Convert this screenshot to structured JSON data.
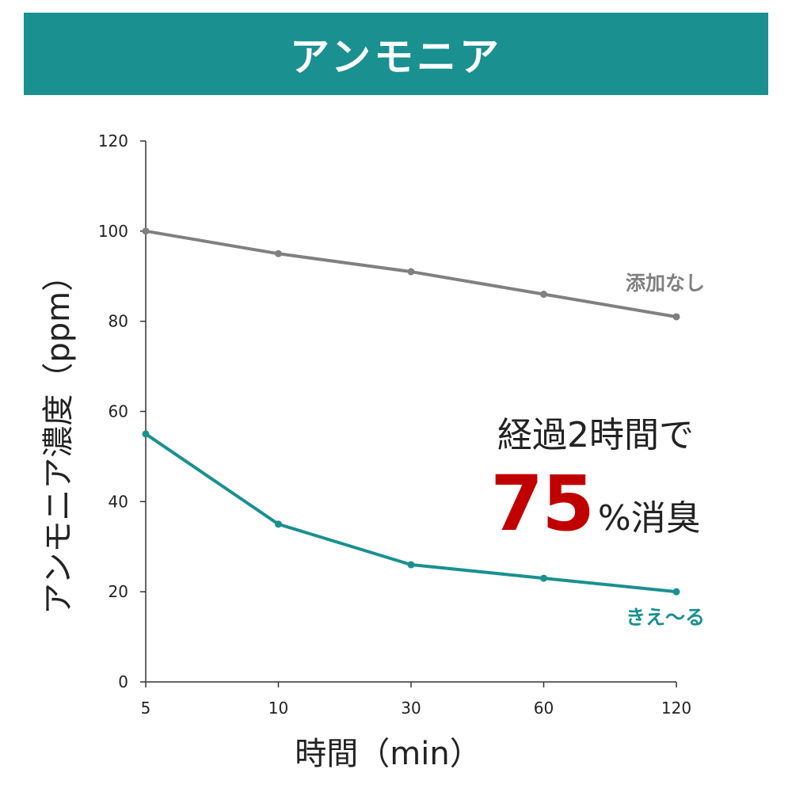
{
  "banner": {
    "title": "アンモニア"
  },
  "callout": {
    "line1": "経過2時間で",
    "value": "75",
    "suffix": "%消臭"
  },
  "chart_data": {
    "type": "line",
    "title": "アンモニア",
    "xlabel": "時間（min）",
    "ylabel": "アンモニア濃度（ppm）",
    "categories": [
      "5",
      "10",
      "30",
      "60",
      "120"
    ],
    "ylim": [
      0,
      120
    ],
    "yticks": [
      "0",
      "20",
      "40",
      "60",
      "80",
      "100",
      "120"
    ],
    "grid": false,
    "series": [
      {
        "name": "添加なし",
        "color": "#808080",
        "values": [
          100,
          95,
          91,
          86,
          81
        ]
      },
      {
        "name": "きえ〜る",
        "color": "#1a9090",
        "values": [
          55,
          35,
          26,
          23,
          20
        ]
      }
    ]
  }
}
